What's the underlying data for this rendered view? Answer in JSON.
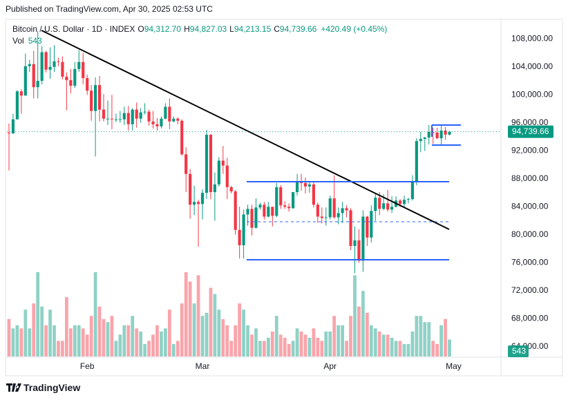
{
  "header": {
    "published": "Published on TradingView.com, Apr 30, 2025 02:53 UTC"
  },
  "footer": {
    "brand": "TradingView"
  },
  "chart_data": {
    "type": "candlestick",
    "symbol": "Bitcoin / U.S. Dollar · 1D · INDEX",
    "ohlc_legend": [
      {
        "label": "O",
        "value": "94,312.70"
      },
      {
        "label": "H",
        "value": "94,827.03"
      },
      {
        "label": "L",
        "value": "94,213.15"
      },
      {
        "label": "C",
        "value": "94,739.66"
      }
    ],
    "change": "+420.49 (+0.45%)",
    "volume_title": "Vol",
    "volume_label": "543",
    "last_price_label": "94,739.66",
    "up_color": "#089981",
    "down_color": "#f23645",
    "grid": false,
    "xlim": [
      -0.5,
      119.5
    ],
    "xticks": [
      {
        "value": 19,
        "label": "Feb"
      },
      {
        "value": 47,
        "label": "Mar"
      },
      {
        "value": 78,
        "label": "Apr"
      },
      {
        "value": 108,
        "label": "May"
      }
    ],
    "ylim": [
      62600,
      110600
    ],
    "yticks": [
      {
        "value": 64000,
        "label": "64,000.00"
      },
      {
        "value": 68000,
        "label": "68,000.00"
      },
      {
        "value": 72000,
        "label": "72,000.00"
      },
      {
        "value": 76000,
        "label": "76,000.00"
      },
      {
        "value": 80000,
        "label": "80,000.00"
      },
      {
        "value": 84000,
        "label": "84,000.00"
      },
      {
        "value": 88000,
        "label": "88,000.00"
      },
      {
        "value": 92000,
        "label": "92,000.00"
      },
      {
        "value": 96000,
        "label": "96,000.00"
      },
      {
        "value": 100000,
        "label": "100,000.00"
      },
      {
        "value": 104000,
        "label": "104,000.00"
      },
      {
        "value": 108000,
        "label": "108,000.00"
      }
    ],
    "open": [
      94600,
      94500,
      96500,
      100500,
      99900,
      104100,
      104400,
      101100,
      102000,
      106100,
      103600,
      104000,
      104800,
      104700,
      102600,
      102100,
      101300,
      103700,
      104700,
      102400,
      100600,
      97700,
      101400,
      97900,
      96600,
      96600,
      96500,
      96500,
      96500,
      97400,
      95800,
      97900,
      96600,
      97500,
      97600,
      96200,
      95800,
      95500,
      96600,
      98300,
      96200,
      96600,
      96300,
      91500,
      88700,
      84300,
      84700,
      84400,
      86000,
      94300,
      86100,
      87200,
      90600,
      89900,
      86800,
      86200,
      80700,
      78500,
      82900,
      83700,
      81000,
      83900,
      84300,
      82600,
      84000,
      82700,
      86800,
      84200,
      84000,
      83800,
      86100,
      87500,
      87400,
      86900,
      87200,
      84300,
      82600,
      82400,
      82500,
      85200,
      82500,
      83100,
      83800,
      83500,
      78400,
      79200,
      76300,
      82600,
      79600,
      83400,
      85300,
      83700,
      84500,
      83600,
      84000,
      84900,
      84400,
      85000,
      85100,
      87500,
      93400,
      93700,
      93900,
      94700,
      94600,
      93800,
      94900,
      94312.7
    ],
    "high": [
      95900,
      97300,
      100700,
      100800,
      105900,
      105000,
      106300,
      109100,
      107000,
      106300,
      106800,
      107100,
      105300,
      105500,
      103200,
      103700,
      104700,
      106400,
      106000,
      102900,
      101400,
      102500,
      102700,
      100100,
      99200,
      100000,
      97300,
      97700,
      98300,
      98400,
      98100,
      98900,
      98100,
      98800,
      97900,
      97700,
      96700,
      96900,
      98800,
      99500,
      96900,
      96800,
      96500,
      92500,
      89400,
      87000,
      85000,
      86500,
      95000,
      94400,
      88900,
      91100,
      92700,
      91000,
      87000,
      86400,
      84000,
      83600,
      84300,
      84300,
      85200,
      84600,
      84700,
      84700,
      84000,
      87400,
      87100,
      84800,
      84500,
      86100,
      88700,
      88700,
      88200,
      87700,
      87500,
      84600,
      83900,
      83900,
      85600,
      88500,
      83900,
      84700,
      84200,
      83800,
      81200,
      80800,
      83500,
      82700,
      84200,
      85900,
      86100,
      85800,
      86400,
      85500,
      85500,
      85100,
      85600,
      85300,
      88500,
      93800,
      94700,
      94000,
      95700,
      95300,
      95300,
      95600,
      95400,
      94827.03
    ],
    "low": [
      89200,
      94400,
      96500,
      97300,
      99900,
      103300,
      99500,
      99500,
      101500,
      103200,
      102300,
      103300,
      104100,
      102200,
      97800,
      100200,
      101000,
      103300,
      101500,
      100000,
      96300,
      91200,
      96200,
      96200,
      95700,
      95100,
      96100,
      96000,
      95700,
      94900,
      94900,
      95300,
      96000,
      97200,
      95600,
      95200,
      94900,
      95200,
      96500,
      95100,
      96100,
      95800,
      91300,
      86100,
      82300,
      82800,
      78300,
      82200,
      85100,
      85100,
      82000,
      86900,
      88700,
      85100,
      85900,
      80000,
      76600,
      76600,
      81300,
      79900,
      80900,
      83600,
      82200,
      82500,
      81200,
      82500,
      83700,
      83700,
      83300,
      83700,
      85600,
      86300,
      85900,
      86000,
      83900,
      81700,
      81600,
      81300,
      82200,
      82300,
      81500,
      81700,
      82500,
      77800,
      74500,
      76000,
      74700,
      78400,
      78900,
      82000,
      82800,
      83500,
      83300,
      83100,
      83900,
      84000,
      84000,
      84500,
      84900,
      87100,
      91800,
      92000,
      92900,
      93000,
      93700,
      92900,
      93600,
      94213.15
    ],
    "close": [
      94500,
      96500,
      100500,
      99900,
      104100,
      104400,
      101100,
      102000,
      106100,
      103600,
      104000,
      104800,
      104700,
      102600,
      102100,
      101300,
      103700,
      104700,
      102400,
      100600,
      97700,
      101400,
      97900,
      96600,
      96600,
      96500,
      96500,
      96500,
      97400,
      95800,
      97900,
      96600,
      97500,
      97600,
      96200,
      95800,
      95500,
      96600,
      98300,
      96200,
      96600,
      96300,
      91500,
      88700,
      84300,
      84700,
      84400,
      86000,
      94300,
      86100,
      87200,
      90600,
      89900,
      86800,
      86200,
      80700,
      78500,
      82900,
      83700,
      81000,
      83900,
      84300,
      82600,
      84000,
      82700,
      86800,
      84200,
      84000,
      83800,
      86100,
      87500,
      87400,
      86900,
      87200,
      84300,
      82600,
      82400,
      82500,
      85200,
      82500,
      83100,
      83800,
      83500,
      78400,
      79200,
      76300,
      82600,
      79600,
      83400,
      85300,
      83700,
      84500,
      83600,
      84000,
      84900,
      84400,
      85000,
      85100,
      87500,
      93400,
      93700,
      93900,
      94700,
      94600,
      93800,
      94900,
      94319.17,
      94739.66
    ],
    "volume": [
      1200,
      900,
      1000,
      900,
      1500,
      900,
      1700,
      2700,
      1600,
      1000,
      1500,
      1000,
      500,
      500,
      1900,
      900,
      1000,
      1000,
      900,
      700,
      1300,
      2700,
      1600,
      1200,
      1100,
      1300,
      500,
      700,
      1000,
      1000,
      1300,
      900,
      800,
      400,
      500,
      700,
      1000,
      800,
      900,
      1500,
      400,
      500,
      1700,
      2700,
      2400,
      1700,
      2600,
      1300,
      1400,
      2200,
      2000,
      1500,
      1200,
      1000,
      500,
      1000,
      1700,
      1500,
      1000,
      700,
      900,
      500,
      500,
      600,
      800,
      1300,
      700,
      600,
      400,
      500,
      900,
      800,
      700,
      600,
      900,
      600,
      500,
      800,
      800,
      1300,
      1000,
      1000,
      500,
      1300,
      2600,
      1600,
      2100,
      1400,
      1000,
      900,
      800,
      700,
      700,
      600,
      500,
      500,
      400,
      400,
      800,
      1300,
      1300,
      1100,
      1100,
      500,
      400,
      1000,
      1200,
      543
    ]
  }
}
